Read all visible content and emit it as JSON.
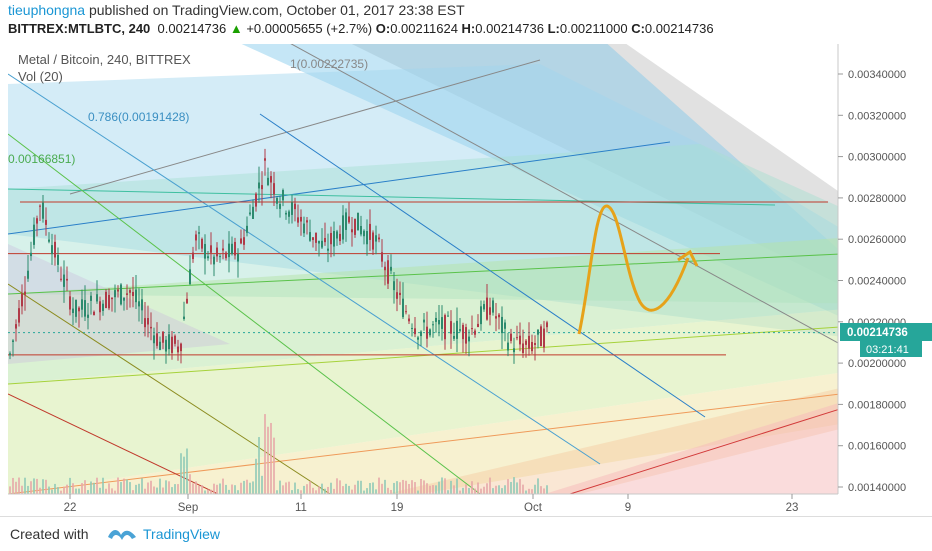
{
  "header": {
    "user": "tieuphongna",
    "published": "published on TradingView.com, October 01, 2017 23:38 EST",
    "symbol": "BITTREX:MTLBTC, 240",
    "last": "0.00214736",
    "arrow": "▲",
    "change": "+0.00005655 (+2.7%)",
    "o_label": "O:",
    "o": "0.00211624",
    "h_label": "H:",
    "h": "0.00214736",
    "l_label": "L:",
    "l": "0.00211000",
    "c_label": "C:",
    "c": "0.00214736"
  },
  "legend": {
    "title": "Metal / Bitcoin, 240, BITTREX",
    "vol": "Vol (20)"
  },
  "fib_labels": {
    "one": "1(0.00222735)",
    "p786": "0.786(0.00191428)",
    "p618": "0.00166851)"
  },
  "chart_data": {
    "type": "candlestick",
    "y_ticks": [
      "0.00340000",
      "0.00320000",
      "0.00300000",
      "0.00280000",
      "0.00260000",
      "0.00240000",
      "0.00220000",
      "0.00200000",
      "0.00180000",
      "0.00160000",
      "0.00140000"
    ],
    "y_tick_values": [
      0.0034,
      0.0032,
      0.003,
      0.0028,
      0.0026,
      0.0024,
      0.0022,
      0.002,
      0.0018,
      0.0016,
      0.0014
    ],
    "ylim": [
      0.00133,
      0.00355
    ],
    "x_ticks": [
      "22",
      "Sep",
      "11",
      "19",
      "Oct",
      "9",
      "23"
    ],
    "last_price": "0.00214736",
    "countdown": "03:21:41",
    "last_price_value": 0.00214736,
    "horizontal_levels": [
      0.00278,
      0.00253,
      0.00204
    ],
    "accent_colors": {
      "up": "#26a69a",
      "down": "#c0392b",
      "last": "#26a69a",
      "projection": "#e6a21a"
    }
  },
  "footer": {
    "created_with": "Created with",
    "brand": "TradingView"
  }
}
